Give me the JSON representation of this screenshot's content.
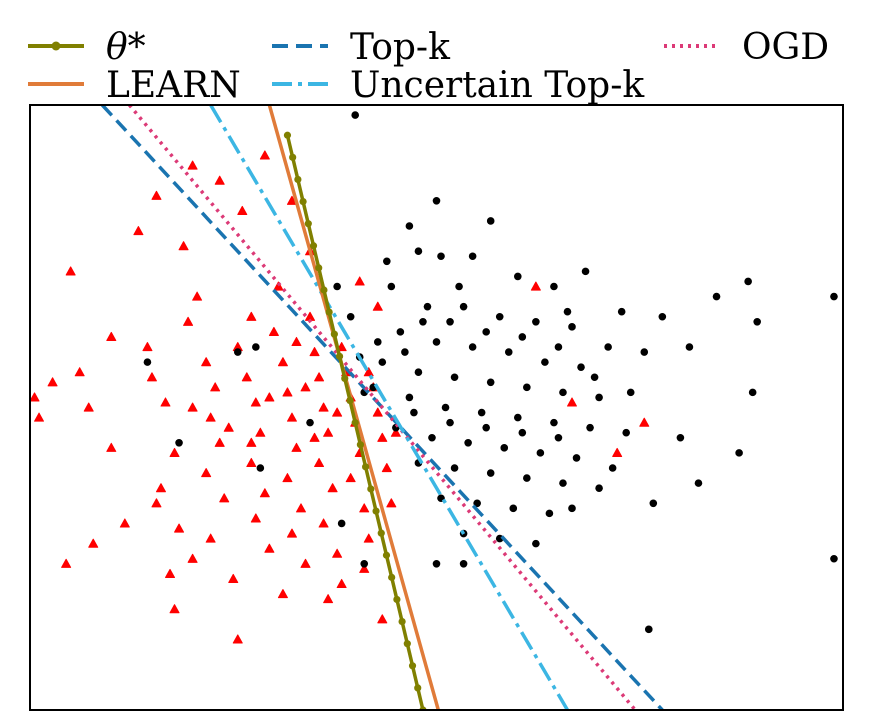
{
  "chart_data": {
    "type": "scatter",
    "title": "",
    "xlabel": "",
    "ylabel": "",
    "xlim": [
      -4.0,
      5.0
    ],
    "ylim": [
      -3.0,
      3.0
    ],
    "grid": false,
    "axes_ticks": false,
    "legend": {
      "placement": "top, outside plot, 3 columns",
      "entries": [
        {
          "label": "θ*",
          "color": "#808000",
          "style": "solid-with-dot-markers"
        },
        {
          "label": "LEARN",
          "color": "#E07B39",
          "style": "solid"
        },
        {
          "label": "Top-k",
          "color": "#1A74B0",
          "style": "dashed"
        },
        {
          "label": "Uncertain Top-k",
          "color": "#3CB6E3",
          "style": "dashdot"
        },
        {
          "label": "OGD",
          "color": "#DC3A77",
          "style": "dotted"
        }
      ]
    },
    "boundary_lines": [
      {
        "name": "θ*",
        "color": "#808000",
        "dash": "solid",
        "marker": "dot",
        "points": [
          [
            -1.15,
            2.7
          ],
          [
            0.35,
            -3.0
          ]
        ]
      },
      {
        "name": "LEARN",
        "color": "#E07B39",
        "dash": "solid",
        "points": [
          [
            -1.35,
            3.0
          ],
          [
            0.52,
            -3.0
          ]
        ]
      },
      {
        "name": "Top-k",
        "color": "#1A74B0",
        "dash": "dashed",
        "points": [
          [
            -3.2,
            3.0
          ],
          [
            3.0,
            -3.0
          ]
        ]
      },
      {
        "name": "Uncertain Top-k",
        "color": "#3CB6E3",
        "dash": "dashdot",
        "points": [
          [
            -2.0,
            3.0
          ],
          [
            1.95,
            -3.0
          ]
        ]
      },
      {
        "name": "OGD",
        "color": "#DC3A77",
        "dash": "dotted",
        "points": [
          [
            -2.9,
            3.0
          ],
          [
            2.7,
            -3.0
          ]
        ]
      }
    ],
    "series": [
      {
        "marker": "triangle",
        "color": "#ff0000",
        "points": [
          [
            -3.55,
            1.35
          ],
          [
            -3.1,
            0.7
          ],
          [
            -3.45,
            0.35
          ],
          [
            -3.35,
            0.0
          ],
          [
            -3.1,
            -0.4
          ],
          [
            -2.95,
            -1.15
          ],
          [
            -3.3,
            -1.35
          ],
          [
            -2.7,
            0.6
          ],
          [
            -2.65,
            0.3
          ],
          [
            -2.5,
            0.05
          ],
          [
            -2.4,
            -0.45
          ],
          [
            -2.55,
            -0.8
          ],
          [
            -2.35,
            -1.2
          ],
          [
            -2.2,
            -1.5
          ],
          [
            -2.15,
            1.1
          ],
          [
            -2.25,
            0.85
          ],
          [
            -2.05,
            0.45
          ],
          [
            -1.95,
            0.2
          ],
          [
            -2.0,
            -0.1
          ],
          [
            -1.9,
            -0.35
          ],
          [
            -2.05,
            -0.65
          ],
          [
            -1.85,
            -0.9
          ],
          [
            -2.0,
            -1.3
          ],
          [
            -1.75,
            -1.7
          ],
          [
            -2.3,
            1.6
          ],
          [
            -1.65,
            1.95
          ],
          [
            -1.55,
            0.9
          ],
          [
            -1.7,
            0.6
          ],
          [
            -1.6,
            0.3
          ],
          [
            -1.5,
            0.05
          ],
          [
            -1.45,
            -0.25
          ],
          [
            -1.55,
            -0.55
          ],
          [
            -1.4,
            -0.85
          ],
          [
            -1.5,
            -1.1
          ],
          [
            -1.35,
            -1.4
          ],
          [
            -1.25,
            1.2
          ],
          [
            -1.3,
            0.75
          ],
          [
            -1.2,
            0.45
          ],
          [
            -1.15,
            0.15
          ],
          [
            -1.1,
            -0.1
          ],
          [
            -1.05,
            -0.4
          ],
          [
            -1.15,
            -0.7
          ],
          [
            -1.0,
            -1.0
          ],
          [
            -1.1,
            -1.25
          ],
          [
            -0.95,
            -1.55
          ],
          [
            -0.9,
            0.9
          ],
          [
            -0.85,
            0.55
          ],
          [
            -0.8,
            0.3
          ],
          [
            -0.75,
            0.0
          ],
          [
            -0.7,
            -0.25
          ],
          [
            -0.8,
            -0.55
          ],
          [
            -0.65,
            -0.8
          ],
          [
            -0.75,
            -1.15
          ],
          [
            -0.6,
            -1.45
          ],
          [
            -0.55,
            0.6
          ],
          [
            -0.5,
            0.35
          ],
          [
            -0.45,
            0.1
          ],
          [
            -0.4,
            -0.15
          ],
          [
            -0.35,
            -0.45
          ],
          [
            -0.45,
            -0.7
          ],
          [
            -0.3,
            -1.0
          ],
          [
            -0.25,
            -1.3
          ],
          [
            -0.2,
            0.2
          ],
          [
            -0.15,
            -0.05
          ],
          [
            -0.1,
            -0.3
          ],
          [
            -0.05,
            -0.6
          ],
          [
            0.0,
            -0.95
          ],
          [
            -2.6,
            2.1
          ],
          [
            -2.8,
            1.75
          ],
          [
            -3.75,
            0.25
          ],
          [
            -2.45,
            -1.65
          ],
          [
            -1.9,
            2.25
          ],
          [
            -0.55,
            -1.75
          ],
          [
            -0.3,
            -1.6
          ],
          [
            -1.8,
            -0.2
          ],
          [
            -2.2,
            0.0
          ],
          [
            -1.35,
            0.1
          ],
          [
            -0.95,
            0.2
          ],
          [
            -0.6,
            -0.05
          ],
          [
            -0.25,
            0.35
          ],
          [
            0.05,
            -0.25
          ],
          [
            -1.05,
            0.65
          ],
          [
            -1.55,
            -0.35
          ],
          [
            -0.85,
            -0.3
          ],
          [
            -3.95,
            0.1
          ],
          [
            -3.9,
            -0.1
          ],
          [
            -2.2,
            2.4
          ],
          [
            -1.4,
            2.5
          ],
          [
            -0.35,
            1.25
          ],
          [
            -0.9,
            1.55
          ],
          [
            -1.1,
            2.05
          ],
          [
            2.0,
            0.05
          ],
          [
            2.8,
            -0.15
          ],
          [
            2.5,
            -0.45
          ],
          [
            1.6,
            1.2
          ],
          [
            -0.15,
            1.0
          ],
          [
            -2.4,
            -2.0
          ],
          [
            -1.7,
            -2.3
          ],
          [
            -0.1,
            -2.1
          ],
          [
            -2.6,
            -0.95
          ],
          [
            -3.6,
            -1.55
          ],
          [
            -1.2,
            -1.85
          ],
          [
            -0.7,
            -1.9
          ]
        ]
      },
      {
        "marker": "circle",
        "color": "#000000",
        "points": [
          [
            -0.4,
            2.9
          ],
          [
            0.3,
            1.55
          ],
          [
            0.55,
            1.5
          ],
          [
            0.9,
            1.5
          ],
          [
            1.4,
            1.3
          ],
          [
            1.8,
            1.2
          ],
          [
            0.0,
            1.2
          ],
          [
            -0.6,
            1.2
          ],
          [
            0.4,
            1.0
          ],
          [
            0.8,
            1.0
          ],
          [
            1.2,
            0.9
          ],
          [
            1.6,
            0.85
          ],
          [
            2.0,
            0.8
          ],
          [
            2.4,
            0.6
          ],
          [
            2.8,
            0.55
          ],
          [
            0.1,
            0.75
          ],
          [
            0.5,
            0.65
          ],
          [
            0.9,
            0.6
          ],
          [
            1.3,
            0.55
          ],
          [
            1.7,
            0.45
          ],
          [
            2.1,
            0.4
          ],
          [
            -0.1,
            0.45
          ],
          [
            0.3,
            0.35
          ],
          [
            0.7,
            0.3
          ],
          [
            1.1,
            0.25
          ],
          [
            1.5,
            0.2
          ],
          [
            1.9,
            0.15
          ],
          [
            2.3,
            0.1
          ],
          [
            -0.2,
            0.2
          ],
          [
            0.2,
            0.1
          ],
          [
            0.6,
            0.0
          ],
          [
            1.0,
            -0.05
          ],
          [
            1.4,
            -0.1
          ],
          [
            1.8,
            -0.15
          ],
          [
            2.2,
            -0.2
          ],
          [
            2.6,
            -0.25
          ],
          [
            0.05,
            -0.2
          ],
          [
            0.45,
            -0.3
          ],
          [
            0.85,
            -0.35
          ],
          [
            1.25,
            -0.4
          ],
          [
            1.65,
            -0.45
          ],
          [
            2.05,
            -0.5
          ],
          [
            0.3,
            -0.55
          ],
          [
            0.7,
            -0.6
          ],
          [
            1.1,
            -0.65
          ],
          [
            1.5,
            -0.7
          ],
          [
            1.9,
            -0.75
          ],
          [
            2.3,
            -0.8
          ],
          [
            0.55,
            -0.9
          ],
          [
            0.95,
            -0.95
          ],
          [
            1.35,
            -1.0
          ],
          [
            1.75,
            -1.05
          ],
          [
            0.8,
            -1.25
          ],
          [
            1.2,
            -1.3
          ],
          [
            1.6,
            -1.35
          ],
          [
            2.0,
            -1.0
          ],
          [
            3.0,
            0.9
          ],
          [
            3.3,
            0.6
          ],
          [
            3.6,
            1.1
          ],
          [
            3.95,
            1.25
          ],
          [
            4.05,
            0.85
          ],
          [
            3.2,
            -0.3
          ],
          [
            3.4,
            -0.75
          ],
          [
            2.9,
            -0.95
          ],
          [
            4.0,
            0.15
          ],
          [
            3.85,
            -0.45
          ],
          [
            4.9,
            1.1
          ],
          [
            4.9,
            -1.5
          ],
          [
            2.85,
            -2.2
          ],
          [
            0.8,
            -1.55
          ],
          [
            0.5,
            -1.55
          ],
          [
            -0.35,
            0.5
          ],
          [
            -0.15,
            0.65
          ],
          [
            0.15,
            0.55
          ],
          [
            0.35,
            0.85
          ],
          [
            0.65,
            0.85
          ],
          [
            1.05,
            0.75
          ],
          [
            1.45,
            0.7
          ],
          [
            1.85,
            0.6
          ],
          [
            2.25,
            0.3
          ],
          [
            2.65,
            0.15
          ],
          [
            0.25,
            -0.05
          ],
          [
            0.65,
            -0.15
          ],
          [
            1.05,
            -0.2
          ],
          [
            1.45,
            -0.25
          ],
          [
            1.85,
            -0.3
          ],
          [
            2.45,
            -0.6
          ],
          [
            -0.45,
            0.9
          ],
          [
            -0.3,
            0.15
          ],
          [
            -1.5,
            0.6
          ],
          [
            -2.35,
            -0.35
          ],
          [
            -0.9,
            -0.15
          ],
          [
            -1.45,
            -0.6
          ],
          [
            -0.3,
            -1.55
          ],
          [
            0.2,
            1.8
          ],
          [
            1.1,
            1.85
          ],
          [
            0.5,
            2.05
          ],
          [
            -0.05,
            1.45
          ],
          [
            0.75,
            1.2
          ],
          [
            1.95,
            0.95
          ],
          [
            2.55,
            0.95
          ],
          [
            2.15,
            1.35
          ],
          [
            -1.7,
            0.55
          ],
          [
            -2.7,
            0.45
          ],
          [
            -0.55,
            -1.15
          ]
        ]
      }
    ]
  }
}
